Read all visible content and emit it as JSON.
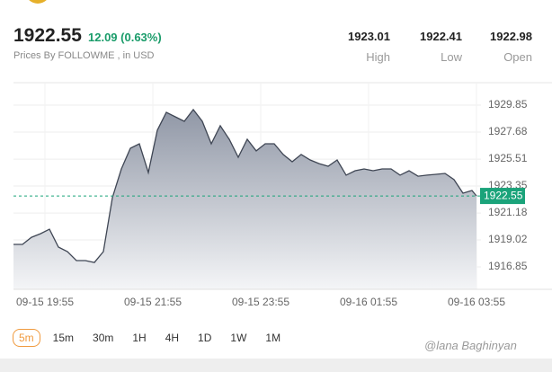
{
  "header": {
    "price": "1922.55",
    "change": "12.09 (0.63%)",
    "source": "Prices By FOLLOWME , in USD",
    "stats": [
      {
        "value": "1923.01",
        "label": "High"
      },
      {
        "value": "1922.41",
        "label": "Low"
      },
      {
        "value": "1922.98",
        "label": "Open"
      }
    ],
    "timeframes": [
      "5m",
      "15m",
      "30m",
      "1H",
      "4H",
      "1D",
      "1W",
      "1M"
    ],
    "selected_timeframe": "5m",
    "watermark": "@lana Baghinyan"
  },
  "chart_data": {
    "type": "area",
    "x": [
      "09-15 19:20",
      "09-15 19:30",
      "09-15 19:40",
      "09-15 19:50",
      "09-15 20:00",
      "09-15 20:10",
      "09-15 20:20",
      "09-15 20:30",
      "09-15 20:40",
      "09-15 20:50",
      "09-15 21:00",
      "09-15 21:10",
      "09-15 21:20",
      "09-15 21:30",
      "09-15 21:40",
      "09-15 21:50",
      "09-15 22:00",
      "09-15 22:10",
      "09-15 22:20",
      "09-15 22:30",
      "09-15 22:40",
      "09-15 22:50",
      "09-15 23:00",
      "09-15 23:10",
      "09-15 23:20",
      "09-15 23:30",
      "09-15 23:40",
      "09-15 23:50",
      "09-16 00:00",
      "09-16 00:10",
      "09-16 00:20",
      "09-16 00:30",
      "09-16 00:40",
      "09-16 00:50",
      "09-16 01:00",
      "09-16 01:10",
      "09-16 01:20",
      "09-16 01:30",
      "09-16 01:40",
      "09-16 01:50",
      "09-16 02:00",
      "09-16 02:10",
      "09-16 02:20",
      "09-16 02:30",
      "09-16 02:40",
      "09-16 02:50",
      "09-16 03:00",
      "09-16 03:10",
      "09-16 03:20",
      "09-16 03:30",
      "09-16 03:40",
      "09-16 03:50",
      "09-16 03:55"
    ],
    "values": [
      1918.66,
      1918.66,
      1919.23,
      1919.52,
      1919.88,
      1918.44,
      1918.08,
      1917.36,
      1917.36,
      1917.21,
      1918.08,
      1922.41,
      1924.72,
      1926.38,
      1926.74,
      1924.43,
      1927.83,
      1929.27,
      1928.91,
      1928.55,
      1929.49,
      1928.55,
      1926.74,
      1928.19,
      1927.1,
      1925.66,
      1927.1,
      1926.17,
      1926.74,
      1926.74,
      1925.88,
      1925.3,
      1925.88,
      1925.44,
      1925.15,
      1924.94,
      1925.44,
      1924.22,
      1924.58,
      1924.72,
      1924.58,
      1924.72,
      1924.72,
      1924.22,
      1924.58,
      1924.14,
      1924.22,
      1924.29,
      1924.36,
      1923.86,
      1922.77,
      1922.99,
      1922.55
    ],
    "color": "#3f4654",
    "last_price": 1922.55,
    "last_price_color": "#1aa37a",
    "xlim": [
      "09-15 19:20",
      "09-16 03:55"
    ],
    "xticks": [
      "09-15 19:55",
      "09-15 21:55",
      "09-15 23:55",
      "09-16 01:55",
      "09-16 03:55"
    ],
    "ylim": [
      1915.05,
      1931.65
    ],
    "yticks": [
      1916.85,
      1919.02,
      1921.18,
      1923.35,
      1925.51,
      1927.68,
      1929.85
    ],
    "grid": true
  }
}
